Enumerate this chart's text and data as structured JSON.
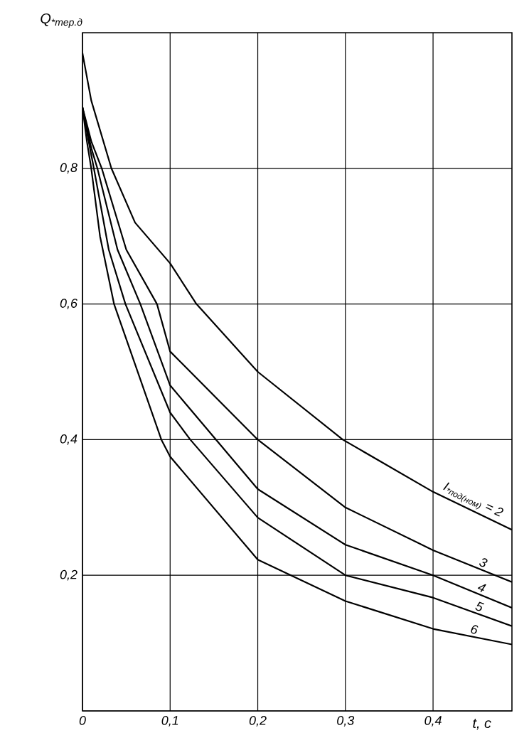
{
  "chart_data": {
    "type": "line",
    "ylabel": "Q$_{*тер.д}$",
    "xlabel": "t, c",
    "xlim": [
      0,
      0.49
    ],
    "ylim": [
      0,
      1
    ],
    "xticks": [
      {
        "value": 0,
        "label": "0"
      },
      {
        "value": 0.1,
        "label": "0,1"
      },
      {
        "value": 0.2,
        "label": "0,2"
      },
      {
        "value": 0.3,
        "label": "0,3"
      },
      {
        "value": 0.4,
        "label": "0,4"
      }
    ],
    "yticks": [
      {
        "value": 0,
        "label": null
      },
      {
        "value": 0.2,
        "label": "0,2"
      },
      {
        "value": 0.4,
        "label": "0,4"
      },
      {
        "value": 0.6,
        "label": "0,6"
      },
      {
        "value": 0.8,
        "label": "0,8"
      }
    ],
    "grid": true,
    "marker": "none",
    "line_style": "solid",
    "series": [
      {
        "name": "I$_{*под(ном)}$ = 2",
        "color": "#000000",
        "x": [
          0,
          0.01,
          0.033,
          0.06,
          0.1,
          0.13,
          0.2,
          0.297,
          0.4,
          0.49
        ],
        "values": [
          0.97,
          0.9,
          0.8,
          0.72,
          0.66,
          0.6,
          0.5,
          0.4,
          0.323,
          0.267
        ]
      },
      {
        "name": "3",
        "color": "#000000",
        "x": [
          0,
          0.01,
          0.022,
          0.05,
          0.085,
          0.1,
          0.2,
          0.3,
          0.4,
          0.49
        ],
        "values": [
          0.89,
          0.84,
          0.8,
          0.68,
          0.6,
          0.53,
          0.4,
          0.3,
          0.237,
          0.19
        ]
      },
      {
        "name": "4",
        "color": "#000000",
        "x": [
          0,
          0.01,
          0.017,
          0.04,
          0.066,
          0.1,
          0.2,
          0.3,
          0.4,
          0.49
        ],
        "values": [
          0.89,
          0.83,
          0.8,
          0.68,
          0.6,
          0.48,
          0.327,
          0.245,
          0.2,
          0.152
        ]
      },
      {
        "name": "5",
        "color": "#000000",
        "x": [
          0,
          0.007,
          0.013,
          0.03,
          0.049,
          0.1,
          0.123,
          0.2,
          0.3,
          0.4,
          0.49
        ],
        "values": [
          0.89,
          0.84,
          0.8,
          0.68,
          0.6,
          0.44,
          0.4,
          0.285,
          0.2,
          0.167,
          0.125
        ]
      },
      {
        "name": "6",
        "color": "#000000",
        "x": [
          0,
          0.005,
          0.01,
          0.02,
          0.036,
          0.09,
          0.1,
          0.2,
          0.3,
          0.4,
          0.49
        ],
        "values": [
          0.89,
          0.84,
          0.8,
          0.7,
          0.6,
          0.4,
          0.375,
          0.223,
          0.162,
          0.121,
          0.098
        ]
      }
    ]
  }
}
